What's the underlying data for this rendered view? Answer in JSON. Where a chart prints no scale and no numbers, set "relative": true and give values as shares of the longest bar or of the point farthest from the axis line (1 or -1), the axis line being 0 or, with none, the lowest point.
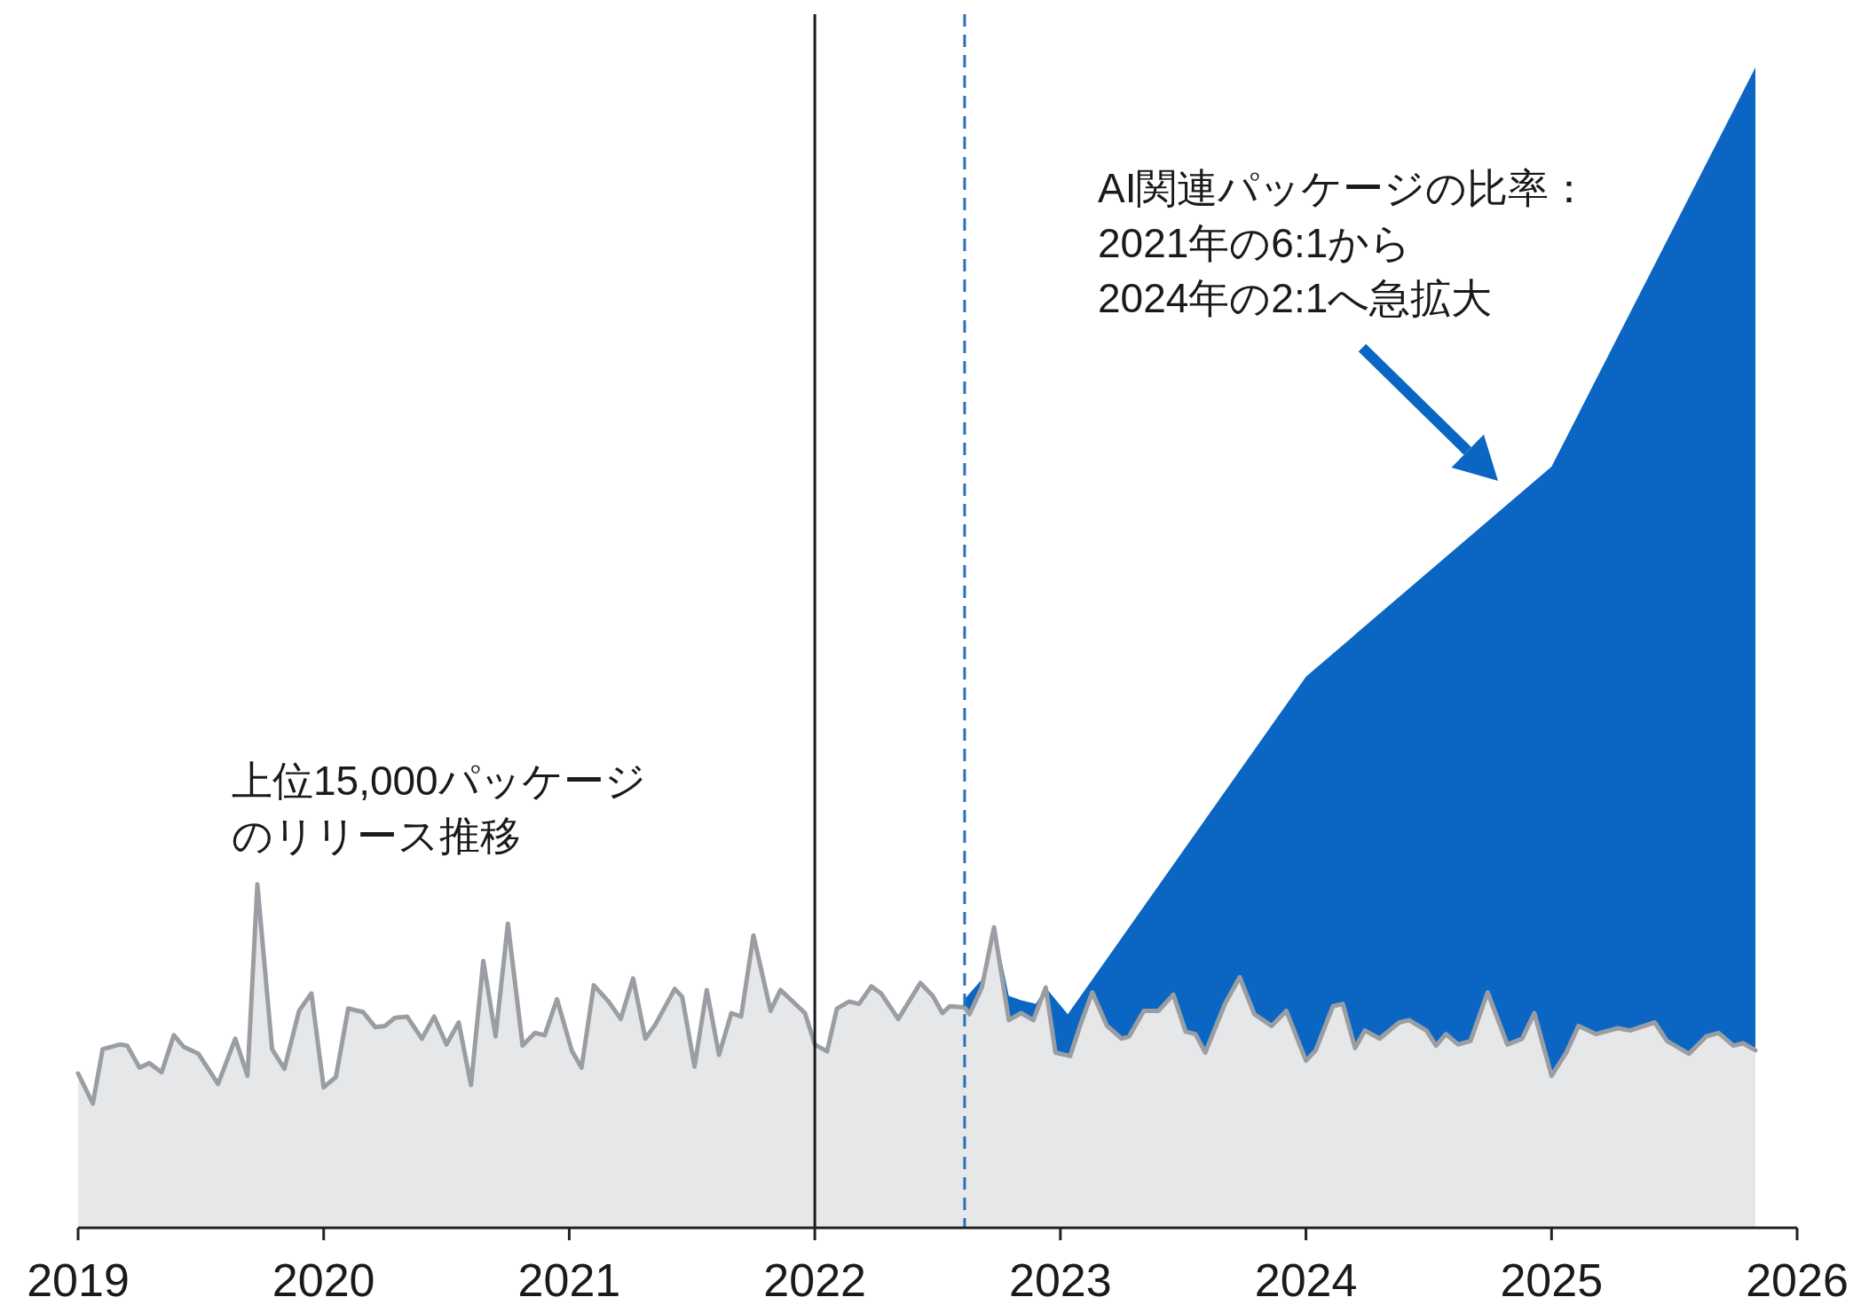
{
  "chart_data": {
    "type": "area",
    "relative": true,
    "xlim": [
      2019,
      2026
    ],
    "xticks": [
      2019,
      2020,
      2021,
      2022,
      2023,
      2024,
      2025,
      2026
    ],
    "series": [
      {
        "color": "#0b66c3",
        "x": [
          2022.61,
          2022.68,
          2022.73,
          2022.79,
          2022.84,
          2022.9,
          2022.94,
          2023.03,
          2024.0,
          2025.0,
          2025.83
        ],
        "values": [
          0.197,
          0.214,
          0.261,
          0.2,
          0.196,
          0.193,
          0.207,
          0.184,
          0.475,
          0.656,
          1.0
        ]
      },
      {
        "color": "#9a9ea3",
        "x": [
          2019.0,
          2019.06,
          2019.1,
          2019.17,
          2019.2,
          2019.25,
          2019.29,
          2019.34,
          2019.39,
          2019.43,
          2019.49,
          2019.57,
          2019.64,
          2019.69,
          2019.73,
          2019.79,
          2019.84,
          2019.9,
          2019.95,
          2020.0,
          2020.05,
          2020.1,
          2020.16,
          2020.21,
          2020.25,
          2020.29,
          2020.34,
          2020.4,
          2020.45,
          2020.5,
          2020.55,
          2020.6,
          2020.65,
          2020.7,
          2020.75,
          2020.81,
          2020.86,
          2020.9,
          2020.95,
          2021.01,
          2021.05,
          2021.1,
          2021.16,
          2021.21,
          2021.26,
          2021.31,
          2021.35,
          2021.43,
          2021.46,
          2021.51,
          2021.56,
          2021.61,
          2021.66,
          2021.7,
          2021.75,
          2021.82,
          2021.86,
          2021.91,
          2021.96,
          2022.0,
          2022.05,
          2022.09,
          2022.14,
          2022.18,
          2022.23,
          2022.27,
          2022.34,
          2022.43,
          2022.48,
          2022.52,
          2022.55,
          2022.61,
          2022.63,
          2022.68,
          2022.73,
          2022.79,
          2022.84,
          2022.89,
          2022.94,
          2022.98,
          2023.04,
          2023.08,
          2023.13,
          2023.19,
          2023.25,
          2023.28,
          2023.34,
          2023.4,
          2023.46,
          2023.51,
          2023.55,
          2023.59,
          2023.67,
          2023.73,
          2023.79,
          2023.86,
          2023.92,
          2024.0,
          2024.04,
          2024.11,
          2024.15,
          2024.2,
          2024.24,
          2024.3,
          2024.38,
          2024.42,
          2024.49,
          2024.53,
          2024.57,
          2024.62,
          2024.67,
          2024.74,
          2024.82,
          2024.88,
          2024.93,
          2025.0,
          2025.06,
          2025.11,
          2025.18,
          2025.27,
          2025.32,
          2025.42,
          2025.47,
          2025.56,
          2025.63,
          2025.68,
          2025.74,
          2025.78,
          2025.83
        ],
        "values": [
          0.133,
          0.107,
          0.154,
          0.158,
          0.157,
          0.138,
          0.142,
          0.134,
          0.166,
          0.156,
          0.15,
          0.124,
          0.163,
          0.131,
          0.296,
          0.154,
          0.137,
          0.187,
          0.202,
          0.121,
          0.13,
          0.189,
          0.186,
          0.173,
          0.174,
          0.181,
          0.182,
          0.163,
          0.182,
          0.158,
          0.177,
          0.123,
          0.23,
          0.165,
          0.262,
          0.157,
          0.168,
          0.166,
          0.197,
          0.153,
          0.138,
          0.209,
          0.195,
          0.18,
          0.215,
          0.163,
          0.175,
          0.206,
          0.199,
          0.139,
          0.205,
          0.149,
          0.185,
          0.182,
          0.252,
          0.187,
          0.205,
          0.195,
          0.185,
          0.158,
          0.152,
          0.189,
          0.195,
          0.193,
          0.208,
          0.202,
          0.18,
          0.211,
          0.2,
          0.185,
          0.191,
          0.19,
          0.184,
          0.207,
          0.259,
          0.179,
          0.185,
          0.179,
          0.207,
          0.151,
          0.148,
          0.174,
          0.203,
          0.174,
          0.163,
          0.165,
          0.187,
          0.187,
          0.201,
          0.169,
          0.167,
          0.151,
          0.193,
          0.216,
          0.184,
          0.174,
          0.187,
          0.144,
          0.153,
          0.191,
          0.193,
          0.155,
          0.17,
          0.163,
          0.177,
          0.179,
          0.17,
          0.157,
          0.167,
          0.158,
          0.161,
          0.203,
          0.158,
          0.163,
          0.185,
          0.131,
          0.151,
          0.174,
          0.167,
          0.172,
          0.17,
          0.177,
          0.161,
          0.15,
          0.165,
          0.168,
          0.157,
          0.159,
          0.153
        ]
      }
    ],
    "ref_lines": [
      {
        "axis": "x",
        "value": 2022,
        "color": "#1a1a1a",
        "line_style": "solid"
      },
      {
        "axis": "x",
        "value": 2022.61,
        "color": "#2a6fb8",
        "line_style": "dashed"
      }
    ],
    "annotations": [
      "AI関連パッケージの比率：2021年の6:1から2024年の2:1へ急拡大",
      "上位15,000パッケージのリリース推移"
    ]
  }
}
